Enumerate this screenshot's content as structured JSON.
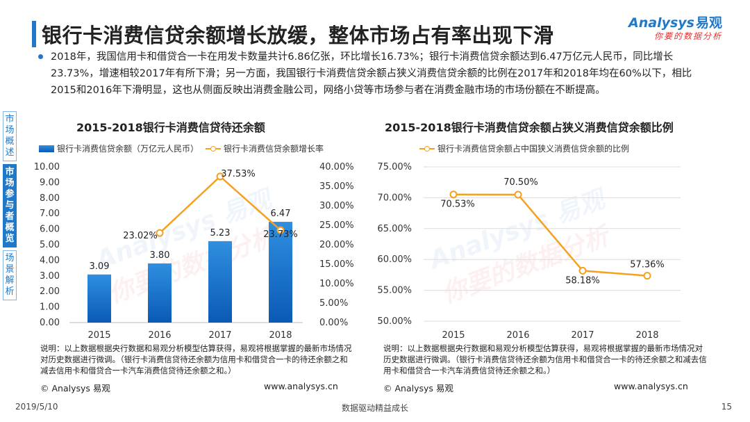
{
  "page_title": "银行卡消费信贷余额增长放缓，整体市场占有率出现下滑",
  "logo": {
    "brand_en": "Analysys",
    "brand_cn": "易观",
    "slogan": "你要的数据分析"
  },
  "summary": "2018年，我国信用卡和借贷合一卡在用发卡数量共计6.86亿张，环比增长16.73%；银行卡消费信贷余额达到6.47万亿元人民币，同比增长23.73%，增速相较2017年有所下滑；另一方面，我国银行卡消费信贷余额占狭义消费信贷余额的比例在2017年和2018年均在60%以下，相比2015和2016年下滑明显，这也从侧面反映出消费金融公司，网络小贷等市场参与者在消费金融市场的市场份额在不断提高。",
  "sidenav": [
    {
      "label": "市场概述",
      "active": false
    },
    {
      "label": "市场参与者概览",
      "active": true
    },
    {
      "label": "场景解析",
      "active": false
    }
  ],
  "watermark": {
    "en": "Analysys 易观",
    "cn": "你要的数据分析"
  },
  "colors": {
    "accent": "#1f78c8",
    "bar": "#0a5ab5",
    "line": "#f5a01e"
  },
  "chart_data": [
    {
      "type": "bar",
      "title": "2015-2018银行卡消费信贷待还余额",
      "categories": [
        "2015",
        "2016",
        "2017",
        "2018"
      ],
      "series": [
        {
          "name": "银行卡消费信贷余额（万亿元人民币）",
          "type": "bar",
          "axis": "left",
          "values": [
            3.09,
            3.8,
            5.23,
            6.47
          ],
          "labels": [
            "3.09",
            "3.80",
            "5.23",
            "6.47"
          ]
        },
        {
          "name": "银行卡消费信贷余额增长率",
          "type": "line",
          "axis": "right",
          "values": [
            null,
            23.02,
            37.53,
            23.73
          ],
          "labels": [
            "",
            "23.02%",
            "37.53%",
            "23.73%"
          ]
        }
      ],
      "ylim": [
        0,
        10
      ],
      "y_ticks": [
        "0.00",
        "1.00",
        "2.00",
        "3.00",
        "4.00",
        "5.00",
        "6.00",
        "7.00",
        "8.00",
        "9.00",
        "10.00"
      ],
      "y2lim": [
        0,
        40
      ],
      "y2_ticks": [
        "0.00%",
        "5.00%",
        "10.00%",
        "15.00%",
        "20.00%",
        "25.00%",
        "30.00%",
        "35.00%",
        "40.00%"
      ],
      "grid": false,
      "legend": "top",
      "note": "说明：以上数据根据央行数据和易观分析模型估算获得，易观将根据掌握的最新市场情况对历史数据进行微调。（银行卡消费信贷待还余额为信用卡和借贷合一卡的待还余额之和减去信用卡和借贷合一卡汽车消费信贷待还余额之和。）",
      "source_left": "© Analysys 易观",
      "source_right": "www.analysys.cn"
    },
    {
      "type": "line",
      "title": "2015-2018银行卡消费信贷余额占狭义消费信贷余额比例",
      "categories": [
        "2015",
        "2016",
        "2017",
        "2018"
      ],
      "series": [
        {
          "name": "银行卡消费信贷余额占中国狭义消费信贷余额的比例",
          "values": [
            70.53,
            70.5,
            58.18,
            57.36
          ],
          "labels": [
            "70.53%",
            "70.50%",
            "58.18%",
            "57.36%"
          ]
        }
      ],
      "ylim": [
        50,
        75
      ],
      "y_ticks": [
        "50.00%",
        "55.00%",
        "60.00%",
        "65.00%",
        "70.00%",
        "75.00%"
      ],
      "grid": true,
      "legend": "top",
      "note": "说明：以上数据根据央行数据和易观分析模型估算获得，易观将根据掌握的最新市场情况对历史数据进行微调。（银行卡消费信贷待还余额为信用卡和借贷合一卡的待还余额之和减去信用卡和借贷合一卡汽车消费信贷待还余额之和。）",
      "source_left": "© Analysys 易观",
      "source_right": "www.analysys.cn"
    }
  ],
  "footer": {
    "date": "2019/5/10",
    "slogan": "数据驱动精益成长",
    "page": "15"
  }
}
